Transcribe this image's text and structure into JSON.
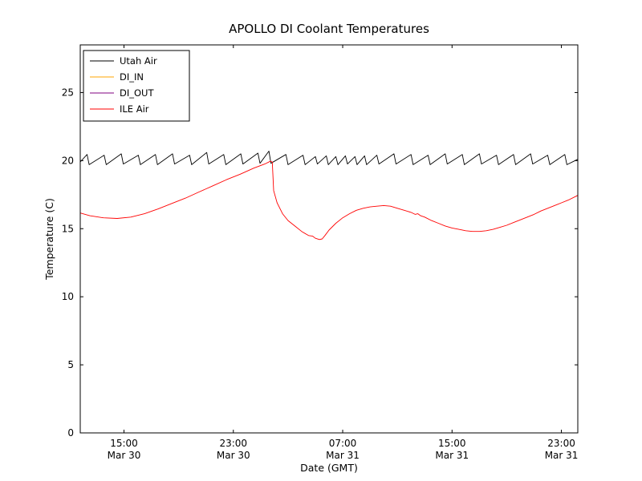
{
  "chart_data": {
    "type": "line",
    "title": "APOLLO DI Coolant Temperatures",
    "xlabel": "Date (GMT)",
    "ylabel": "Temperature (C)",
    "grid": false,
    "legend_position": "upper left",
    "x_units": "hours since Mar 30 00:00 GMT",
    "xlim": [
      11.8,
      48.2
    ],
    "ylim": [
      0,
      28.5
    ],
    "yticks": [
      0,
      5,
      10,
      15,
      20,
      25
    ],
    "xticks": [
      {
        "value": 15,
        "time": "15:00",
        "date": "Mar 30"
      },
      {
        "value": 23,
        "time": "23:00",
        "date": "Mar 30"
      },
      {
        "value": 31,
        "time": "07:00",
        "date": "Mar 31"
      },
      {
        "value": 39,
        "time": "15:00",
        "date": "Mar 31"
      },
      {
        "value": 47,
        "time": "23:00",
        "date": "Mar 31"
      }
    ],
    "series": [
      {
        "name": "Utah Air",
        "color": "#000000",
        "width": 0.9,
        "points": [
          [
            11.8,
            19.9
          ],
          [
            12.3,
            20.45
          ],
          [
            12.45,
            19.7
          ],
          [
            13.55,
            20.4
          ],
          [
            13.7,
            19.7
          ],
          [
            14.8,
            20.5
          ],
          [
            14.95,
            19.75
          ],
          [
            16.05,
            20.4
          ],
          [
            16.2,
            19.7
          ],
          [
            17.3,
            20.45
          ],
          [
            17.45,
            19.7
          ],
          [
            18.55,
            20.5
          ],
          [
            18.7,
            19.75
          ],
          [
            19.8,
            20.4
          ],
          [
            19.95,
            19.7
          ],
          [
            21.05,
            20.6
          ],
          [
            21.2,
            19.75
          ],
          [
            22.3,
            20.45
          ],
          [
            22.45,
            19.7
          ],
          [
            23.55,
            20.5
          ],
          [
            23.7,
            19.75
          ],
          [
            24.8,
            20.55
          ],
          [
            24.95,
            19.8
          ],
          [
            25.6,
            20.7
          ],
          [
            25.75,
            19.8
          ],
          [
            26.85,
            20.45
          ],
          [
            27.0,
            19.7
          ],
          [
            28.1,
            20.4
          ],
          [
            28.25,
            19.7
          ],
          [
            29.0,
            20.3
          ],
          [
            29.15,
            19.75
          ],
          [
            29.8,
            20.35
          ],
          [
            29.95,
            19.7
          ],
          [
            30.5,
            20.3
          ],
          [
            30.65,
            19.7
          ],
          [
            31.2,
            20.35
          ],
          [
            31.35,
            19.75
          ],
          [
            31.9,
            20.3
          ],
          [
            32.05,
            19.7
          ],
          [
            32.6,
            20.35
          ],
          [
            32.75,
            19.7
          ],
          [
            33.5,
            20.4
          ],
          [
            33.65,
            19.75
          ],
          [
            34.75,
            20.5
          ],
          [
            34.9,
            19.75
          ],
          [
            36.0,
            20.45
          ],
          [
            36.15,
            19.7
          ],
          [
            37.25,
            20.4
          ],
          [
            37.4,
            19.7
          ],
          [
            38.5,
            20.5
          ],
          [
            38.65,
            19.75
          ],
          [
            39.75,
            20.45
          ],
          [
            39.9,
            19.7
          ],
          [
            41.0,
            20.5
          ],
          [
            41.15,
            19.75
          ],
          [
            42.25,
            20.4
          ],
          [
            42.4,
            19.7
          ],
          [
            43.5,
            20.45
          ],
          [
            43.65,
            19.7
          ],
          [
            44.75,
            20.5
          ],
          [
            44.9,
            19.75
          ],
          [
            46.0,
            20.4
          ],
          [
            46.15,
            19.7
          ],
          [
            47.25,
            20.45
          ],
          [
            47.4,
            19.7
          ],
          [
            48.2,
            20.1
          ]
        ]
      },
      {
        "name": "DI_IN",
        "color": "#ffa500",
        "width": 0.9,
        "points": []
      },
      {
        "name": "DI_OUT",
        "color": "#800080",
        "width": 0.9,
        "points": []
      },
      {
        "name": "ILE Air",
        "color": "#ff0000",
        "width": 0.9,
        "points": [
          [
            11.8,
            16.15
          ],
          [
            12.5,
            15.95
          ],
          [
            13.5,
            15.8
          ],
          [
            14.5,
            15.75
          ],
          [
            15.5,
            15.85
          ],
          [
            16.5,
            16.1
          ],
          [
            17.5,
            16.45
          ],
          [
            18.5,
            16.85
          ],
          [
            19.5,
            17.25
          ],
          [
            20.5,
            17.7
          ],
          [
            21.5,
            18.15
          ],
          [
            22.5,
            18.6
          ],
          [
            23.5,
            19.0
          ],
          [
            24.5,
            19.45
          ],
          [
            25.3,
            19.75
          ],
          [
            25.7,
            19.95
          ],
          [
            25.85,
            19.9
          ],
          [
            25.95,
            17.8
          ],
          [
            26.2,
            16.9
          ],
          [
            26.6,
            16.1
          ],
          [
            27.0,
            15.6
          ],
          [
            27.5,
            15.2
          ],
          [
            28.0,
            14.8
          ],
          [
            28.5,
            14.5
          ],
          [
            28.8,
            14.45
          ],
          [
            29.0,
            14.3
          ],
          [
            29.3,
            14.2
          ],
          [
            29.5,
            14.25
          ],
          [
            29.7,
            14.5
          ],
          [
            30.0,
            14.9
          ],
          [
            30.5,
            15.4
          ],
          [
            31.0,
            15.8
          ],
          [
            31.5,
            16.1
          ],
          [
            32.0,
            16.35
          ],
          [
            32.5,
            16.5
          ],
          [
            33.0,
            16.6
          ],
          [
            33.5,
            16.65
          ],
          [
            34.0,
            16.7
          ],
          [
            34.5,
            16.65
          ],
          [
            35.0,
            16.5
          ],
          [
            35.5,
            16.35
          ],
          [
            36.0,
            16.2
          ],
          [
            36.3,
            16.05
          ],
          [
            36.5,
            16.1
          ],
          [
            36.7,
            15.95
          ],
          [
            37.0,
            15.85
          ],
          [
            37.5,
            15.6
          ],
          [
            38.0,
            15.4
          ],
          [
            38.5,
            15.2
          ],
          [
            39.0,
            15.05
          ],
          [
            39.5,
            14.95
          ],
          [
            40.0,
            14.85
          ],
          [
            40.5,
            14.8
          ],
          [
            41.0,
            14.8
          ],
          [
            41.5,
            14.85
          ],
          [
            42.0,
            14.95
          ],
          [
            42.5,
            15.1
          ],
          [
            43.0,
            15.25
          ],
          [
            43.5,
            15.45
          ],
          [
            44.0,
            15.65
          ],
          [
            44.5,
            15.85
          ],
          [
            45.0,
            16.05
          ],
          [
            45.5,
            16.3
          ],
          [
            46.0,
            16.5
          ],
          [
            46.5,
            16.7
          ],
          [
            47.0,
            16.9
          ],
          [
            47.5,
            17.1
          ],
          [
            48.2,
            17.45
          ]
        ]
      }
    ]
  }
}
